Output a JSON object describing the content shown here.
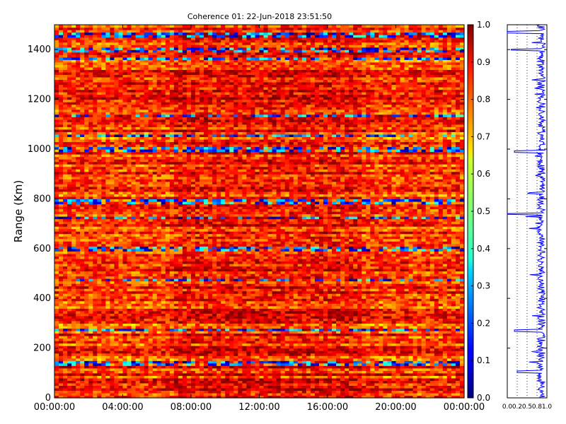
{
  "chart_data": [
    {
      "type": "heatmap",
      "title": "Coherence 01: 22-Jun-2018 23:51:50",
      "xlabel": "",
      "ylabel": "Range (Km)",
      "x_tick_labels": [
        "00:00:00",
        "04:00:00",
        "08:00:00",
        "12:00:00",
        "16:00:00",
        "20:00:00",
        "00:00:00"
      ],
      "x_range_hours": [
        0,
        24
      ],
      "y_ticks": [
        0,
        200,
        400,
        600,
        800,
        1000,
        1200,
        1400
      ],
      "y_range": [
        0,
        1500
      ],
      "colorbar": {
        "colormap": "jet",
        "range": [
          0,
          1
        ],
        "ticks": [
          "0.0",
          "0.1",
          "0.2",
          "0.3",
          "0.4",
          "0.5",
          "0.6",
          "0.7",
          "0.8",
          "0.9",
          "1.0"
        ]
      },
      "segments": [
        {
          "start_hour": 0,
          "end_hour": 7,
          "typical_coherence": 0.8
        },
        {
          "start_hour": 7,
          "end_hour": 18,
          "typical_coherence": 0.9
        },
        {
          "start_hour": 18,
          "end_hour": 24,
          "typical_coherence": 0.8
        }
      ],
      "low_coherence_ranges_km": [
        140,
        275,
        475,
        600,
        725,
        790,
        1000,
        1055,
        1135,
        1365,
        1400,
        1460
      ]
    },
    {
      "type": "line",
      "title": "",
      "xlabel": "",
      "ylabel": "",
      "x_range": [
        0,
        1
      ],
      "x_tick_labels": [
        "0.0",
        "0.2",
        "0.5",
        "0.8",
        "1.0"
      ],
      "y_range": [
        0,
        1500
      ],
      "series": [
        {
          "name": "",
          "color": "#0000ff",
          "description_points": [
            {
              "range_km": 20,
              "coherence": 0.88
            },
            {
              "range_km": 105,
              "coherence": 0.25
            },
            {
              "range_km": 270,
              "coherence": 0.18
            },
            {
              "range_km": 480,
              "coherence": 0.78
            },
            {
              "range_km": 600,
              "coherence": 0.85
            },
            {
              "range_km": 740,
              "coherence": 0.0
            },
            {
              "range_km": 990,
              "coherence": 0.18
            },
            {
              "range_km": 1140,
              "coherence": 0.8
            },
            {
              "range_km": 1400,
              "coherence": 0.1
            },
            {
              "range_km": 1470,
              "coherence": 0.0
            }
          ]
        }
      ]
    }
  ]
}
